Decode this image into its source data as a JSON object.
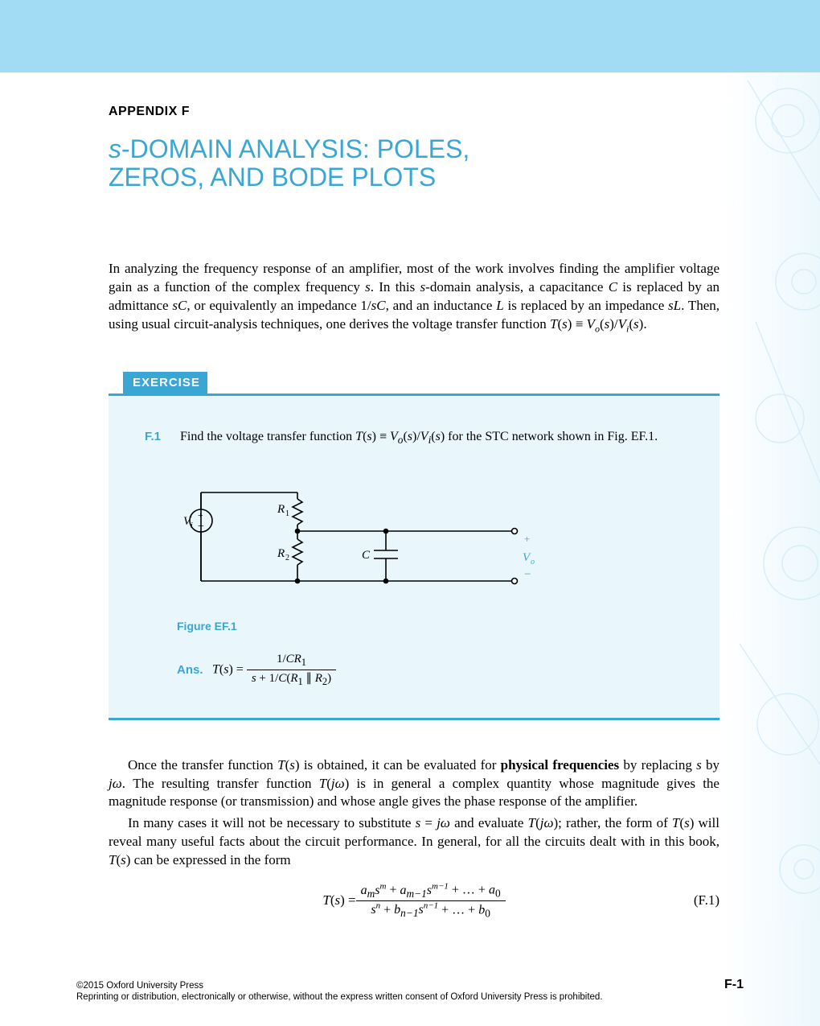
{
  "header": {
    "appendix_label": "APPENDIX F",
    "title_line1": "s-DOMAIN ANALYSIS: POLES,",
    "title_line2": "ZEROS, AND BODE PLOTS"
  },
  "colors": {
    "band": "#a2dcf4",
    "accent": "#3aa6d4",
    "exercise_bg": "#e9f6fc",
    "text": "#000000",
    "page_bg": "#ffffff"
  },
  "paragraph1": "In analyzing the frequency response of an amplifier, most of the work involves finding the amplifier voltage gain as a function of the complex frequency s. In this s-domain analysis, a capacitance C is replaced by an admittance sC, or equivalently an impedance 1/sC, and an inductance L is replaced by an impedance sL. Then, using usual circuit-analysis techniques, one derives the voltage transfer function T(s) ≡ V_o(s)/V_i(s).",
  "paragraph1_html": "In analyzing the frequency response of an amplifier, most of the work involves finding the amplifier voltage gain as a function of the complex frequency <i>s</i>. In this <i>s</i>-domain analysis, a capacitance <i>C</i> is replaced by an admittance <i>sC</i>, or equivalently an impedance 1/<i>sC</i>, and an inductance <i>L</i> is replaced by an impedance <i>sL</i>. Then, using usual circuit-analysis techniques, one derives the voltage transfer function <i>T</i>(<i>s</i>) ≡ <i>V<sub>o</sub></i>(<i>s</i>)/<i>V<sub>i</sub></i>(<i>s</i>).",
  "exercise": {
    "header": "EXERCISE",
    "number": "F.1",
    "prompt_html": "Find the voltage transfer function <i>T</i>(<i>s</i>) ≡ <i>V<sub>o</sub></i>(<i>s</i>)/<i>V<sub>i</sub></i>(<i>s</i>) for the STC network shown in Fig. EF.1.",
    "figure_label": "Figure EF.1",
    "ans_label": "Ans.",
    "transfer_function": {
      "lhs": "T(s) =",
      "numerator": "1/CR₁",
      "denominator": "s + 1/C(R₁ ∥ R₂)"
    },
    "circuit": {
      "components": {
        "Vi": "Vᵢ",
        "R1": "R₁",
        "R2": "R₂",
        "C": "C",
        "Vo": "Vₒ"
      },
      "node_colors": {
        "wire": "#000000",
        "terminal_fill": "#ffffff"
      }
    }
  },
  "paragraph2_html": "Once the transfer function <i>T</i>(<i>s</i>) is obtained, it can be evaluated for <b>physical frequencies</b> by replacing <i>s</i> by <i>jω</i>. The resulting transfer function <i>T</i>(<i>jω</i>) is in general a complex quantity whose magnitude gives the magnitude response (or transmission) and whose angle gives the phase response of the amplifier.",
  "paragraph3_html": "In many cases it will not be necessary to substitute <i>s</i> = <i>jω</i> and evaluate <i>T</i>(<i>jω</i>); rather, the form of <i>T</i>(<i>s</i>) will reveal many useful facts about the circuit performance. In general, for all the circuits dealt with in this book, <i>T</i>(<i>s</i>) can be expressed in the form",
  "equation_F1": {
    "lhs": "T(s) =",
    "numerator_html": "<i>a<sub>m</sub>s<sup>m</sup></i> + <i>a<sub>m−1</sub>s<sup>m−1</sup></i> + … + <i>a</i><sub>0</sub>",
    "denominator_html": "<i>s<sup>n</sup></i> + <i>b<sub>n−1</sub>s<sup>n−1</sup></i> + … + <i>b</i><sub>0</sub>",
    "eqnum": "(F.1)"
  },
  "footer": {
    "copyright": "©2015 Oxford University Press",
    "restriction": "Reprinting or distribution, electronically or otherwise, without the express written consent of Oxford University Press is prohibited.",
    "page_number": "F-1"
  }
}
